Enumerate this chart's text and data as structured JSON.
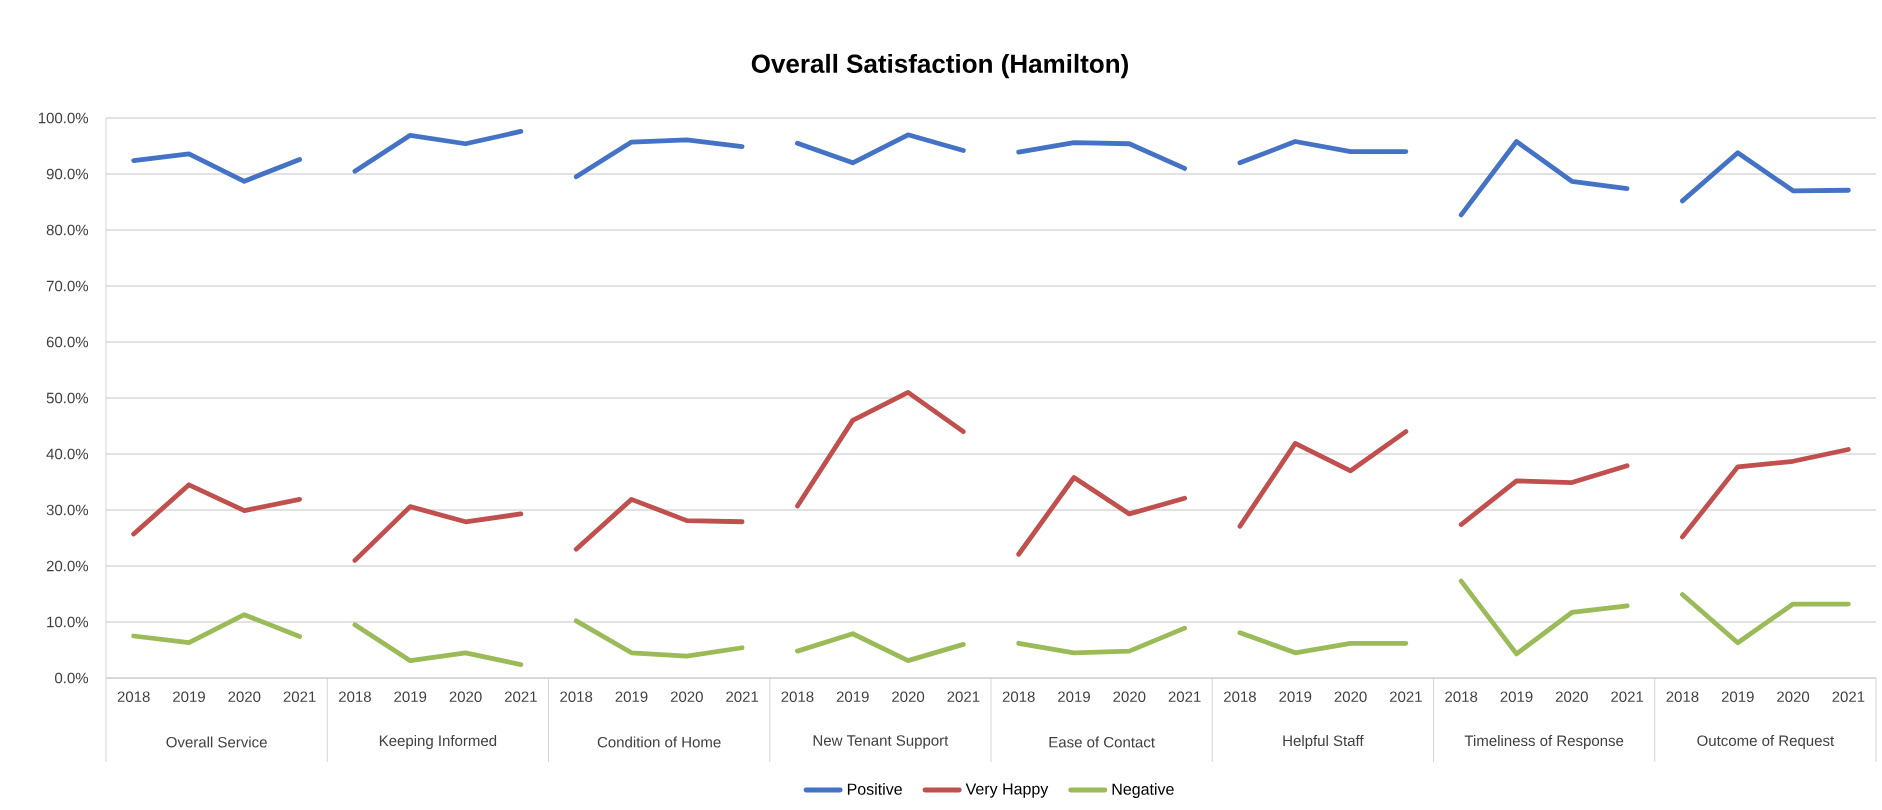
{
  "chart_data": {
    "type": "line",
    "title": "Overall Satisfaction (Hamilton)",
    "categories": [
      "2018",
      "2019",
      "2020",
      "2021",
      "2018",
      "2019",
      "2020",
      "2021",
      "2018",
      "2019",
      "2020",
      "2021",
      "2018",
      "2019",
      "2020",
      "2021",
      "2018",
      "2019",
      "2020",
      "2021",
      "2018",
      "2019",
      "2020",
      "2021",
      "2018",
      "2019",
      "2020",
      "2021",
      "2018",
      "2019",
      "2020",
      "2021"
    ],
    "annotations": [
      "Overall Service",
      "Keeping Informed",
      "Condition of Home",
      "New Tenant Support",
      "Ease of Contact",
      "Helpful Staff",
      "Timeliness of Response",
      "Outcome of Request"
    ],
    "series": [
      {
        "name": "Positive",
        "color": "#4472c4",
        "values": [
          92.4,
          93.6,
          88.7,
          92.6,
          90.5,
          96.9,
          95.4,
          97.6,
          89.5,
          95.7,
          96.1,
          94.9,
          95.5,
          92.0,
          97.0,
          94.2,
          93.9,
          95.6,
          95.4,
          91.0,
          92.0,
          95.8,
          94.0,
          94.0,
          82.7,
          95.8,
          88.7,
          87.4,
          85.2,
          93.8,
          87.0,
          87.1
        ]
      },
      {
        "name": "Very Happy",
        "color": "#c0504d",
        "values": [
          25.7,
          34.5,
          29.9,
          31.9,
          21.0,
          30.6,
          27.9,
          29.3,
          23.0,
          31.9,
          28.1,
          27.9,
          30.7,
          46.0,
          51.0,
          44.0,
          22.1,
          35.8,
          29.3,
          32.1,
          27.1,
          41.9,
          37.0,
          44.0,
          27.4,
          35.2,
          34.9,
          37.9,
          25.2,
          37.7,
          38.7,
          40.8
        ]
      },
      {
        "name": "Negative",
        "color": "#9bbb59",
        "values": [
          7.5,
          6.3,
          11.3,
          7.4,
          9.5,
          3.1,
          4.5,
          2.4,
          10.2,
          4.5,
          3.9,
          5.4,
          4.8,
          7.9,
          3.1,
          6.0,
          6.2,
          4.5,
          4.8,
          8.9,
          8.1,
          4.5,
          6.2,
          6.2,
          17.3,
          4.3,
          11.7,
          12.9,
          14.9,
          6.3,
          13.2,
          13.2
        ]
      }
    ],
    "ylim": [
      0,
      100
    ],
    "yticks": [
      {
        "value": 0,
        "label": "0.0%"
      },
      {
        "value": 10,
        "label": "10.0%"
      },
      {
        "value": 20,
        "label": "20.0%"
      },
      {
        "value": 30,
        "label": "30.0%"
      },
      {
        "value": 40,
        "label": "40.0%"
      },
      {
        "value": 50,
        "label": "50.0%"
      },
      {
        "value": 60,
        "label": "60.0%"
      },
      {
        "value": 70,
        "label": "70.0%"
      },
      {
        "value": 80,
        "label": "80.0%"
      },
      {
        "value": 90,
        "label": "90.0%"
      },
      {
        "value": 100,
        "label": "100.0%"
      }
    ],
    "grid": "y",
    "legend": "bottom"
  }
}
